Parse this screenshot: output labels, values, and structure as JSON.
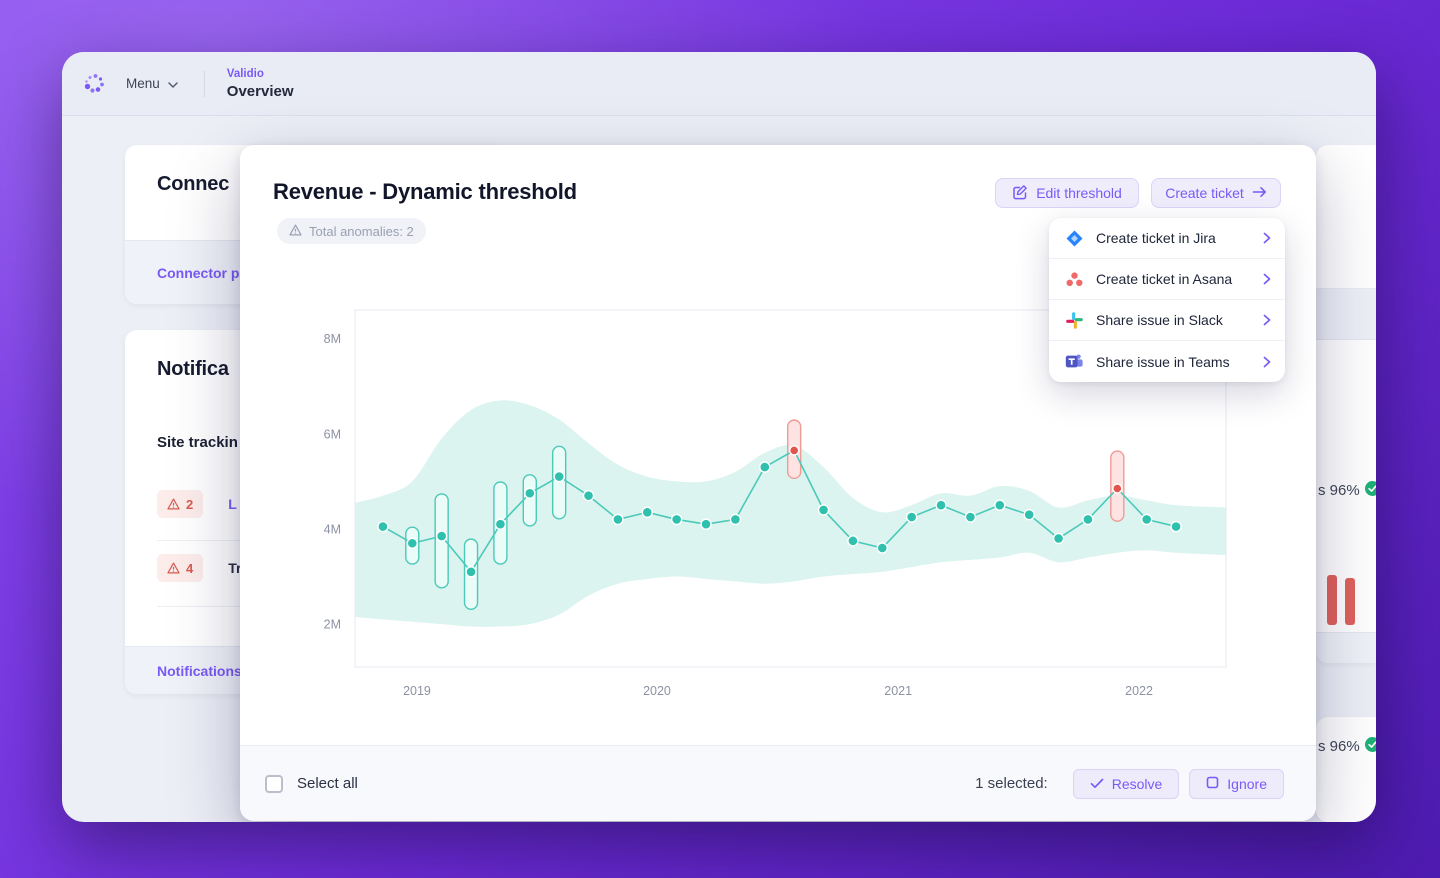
{
  "window": {
    "menu_label": "Menu",
    "breadcrumb": {
      "app": "Validio",
      "page": "Overview"
    }
  },
  "background": {
    "connectors_card": {
      "title": "Connec",
      "footer_link": "Connector pa"
    },
    "notifications_card": {
      "title": "Notifica",
      "subtitle": "Site trackin",
      "rows": [
        {
          "count": "2",
          "label": "L"
        },
        {
          "count": "4",
          "label": "Tr"
        }
      ],
      "footer_link": "Notifications"
    },
    "right_fragments": {
      "metric_top": "s 96%",
      "metric_bottom": "s 96%"
    }
  },
  "modal": {
    "title": "Revenue - Dynamic threshold",
    "anomalies_badge": "Total anomalies: 2",
    "buttons": {
      "edit": "Edit threshold",
      "create": "Create ticket"
    },
    "menu": {
      "items": [
        {
          "icon": "jira-icon",
          "label": "Create ticket in Jira"
        },
        {
          "icon": "asana-icon",
          "label": "Create ticket in Asana"
        },
        {
          "icon": "slack-icon",
          "label": "Share issue in Slack"
        },
        {
          "icon": "teams-icon",
          "label": "Share issue in Teams"
        }
      ]
    },
    "footer": {
      "select_all": "Select all",
      "selected_text": "1 selected:",
      "resolve": "Resolve",
      "ignore": "Ignore"
    }
  },
  "colors": {
    "accent": "#7a5af5",
    "accent_bg": "#efecfc",
    "teal": "#2fc0ae",
    "red": "#e2544e",
    "green": "#1fb176",
    "warning_badge_bg": "#fcecea",
    "warning_badge_text": "#d95b52"
  },
  "icons": {
    "logo": "dot-cluster",
    "menu_chevron": "chevron-down",
    "warning": "triangle-exclamation",
    "edit": "pencil-square",
    "create_arrow": "arrow-right",
    "menu_item_chevron": "chevron-right",
    "jira": "jira-diamond",
    "asana": "asana-dots",
    "slack": "slack-hash",
    "teams": "teams-logo",
    "resolve": "check",
    "ignore": "square",
    "metric_check": "check-circle"
  },
  "chart_data": {
    "type": "line",
    "title": "Revenue - Dynamic threshold",
    "unit": "M",
    "ylim": [
      1.1,
      8.6
    ],
    "t_range": [
      -0.95,
      28.7
    ],
    "grid": false,
    "legend": null,
    "y_ticks": [
      {
        "v": 8,
        "label": "8M"
      },
      {
        "v": 6,
        "label": "6M"
      },
      {
        "v": 4,
        "label": "4M"
      },
      {
        "v": 2,
        "label": "2M"
      }
    ],
    "x_ticks": [
      {
        "t": 1.16,
        "label": "2019"
      },
      {
        "t": 9.33,
        "label": "2020"
      },
      {
        "t": 17.54,
        "label": "2021"
      },
      {
        "t": 25.74,
        "label": "2022"
      }
    ],
    "values": [
      4.05,
      3.7,
      3.85,
      3.1,
      4.1,
      4.75,
      5.1,
      4.7,
      4.2,
      4.35,
      4.2,
      4.1,
      4.2,
      5.3,
      5.65,
      4.4,
      3.75,
      3.6,
      4.25,
      4.5,
      4.25,
      4.5,
      4.3,
      3.8,
      4.2,
      4.85,
      4.2,
      4.05
    ],
    "anomaly_points": [
      14,
      25
    ],
    "range_markers": [
      {
        "index": 1,
        "low": 3.4,
        "high": 3.9
      },
      {
        "index": 2,
        "low": 2.9,
        "high": 4.6
      },
      {
        "index": 3,
        "low": 2.45,
        "high": 3.65
      },
      {
        "index": 4,
        "low": 3.4,
        "high": 4.85
      },
      {
        "index": 5,
        "low": 4.2,
        "high": 5.0
      },
      {
        "index": 6,
        "low": 4.35,
        "high": 5.6
      }
    ],
    "anomaly_markers": [
      {
        "index": 14,
        "low": 5.2,
        "high": 6.15
      },
      {
        "index": 25,
        "low": 4.3,
        "high": 5.5
      }
    ],
    "band": {
      "t": [
        -0.95,
        0,
        1,
        2,
        3,
        4,
        5,
        6,
        7,
        8,
        9,
        10,
        11,
        12,
        13,
        14,
        15,
        16,
        17,
        18,
        19,
        20,
        21,
        22,
        23,
        24,
        25,
        26,
        27,
        28.7
      ],
      "upper": [
        4.55,
        4.7,
        5.0,
        5.9,
        6.5,
        6.7,
        6.6,
        6.3,
        5.8,
        5.35,
        5.1,
        5.0,
        5.0,
        5.2,
        5.6,
        5.75,
        5.3,
        4.65,
        4.35,
        4.5,
        4.75,
        4.7,
        4.9,
        4.8,
        4.45,
        4.6,
        4.7,
        4.6,
        4.5,
        4.45
      ],
      "lower": [
        2.15,
        2.1,
        2.05,
        2.0,
        1.95,
        1.95,
        2.0,
        2.2,
        2.6,
        2.85,
        2.95,
        3.0,
        2.95,
        2.9,
        2.85,
        2.9,
        3.0,
        3.05,
        3.1,
        3.2,
        3.3,
        3.35,
        3.4,
        3.5,
        3.3,
        3.4,
        3.5,
        3.55,
        3.5,
        3.45
      ]
    },
    "colors": {
      "band": "#dbf4ef",
      "line": "#4bc9b9",
      "dot": "#2fc0ae",
      "anomaly": "#e2544e",
      "marker_fill": "#eafcf8",
      "marker_stroke": "#4cc9b8",
      "anomaly_fill": "#fde3e2",
      "anomaly_stroke": "#f09b96",
      "axis_text": "#8c92a4",
      "plot_border": "#e7e9f1"
    }
  }
}
